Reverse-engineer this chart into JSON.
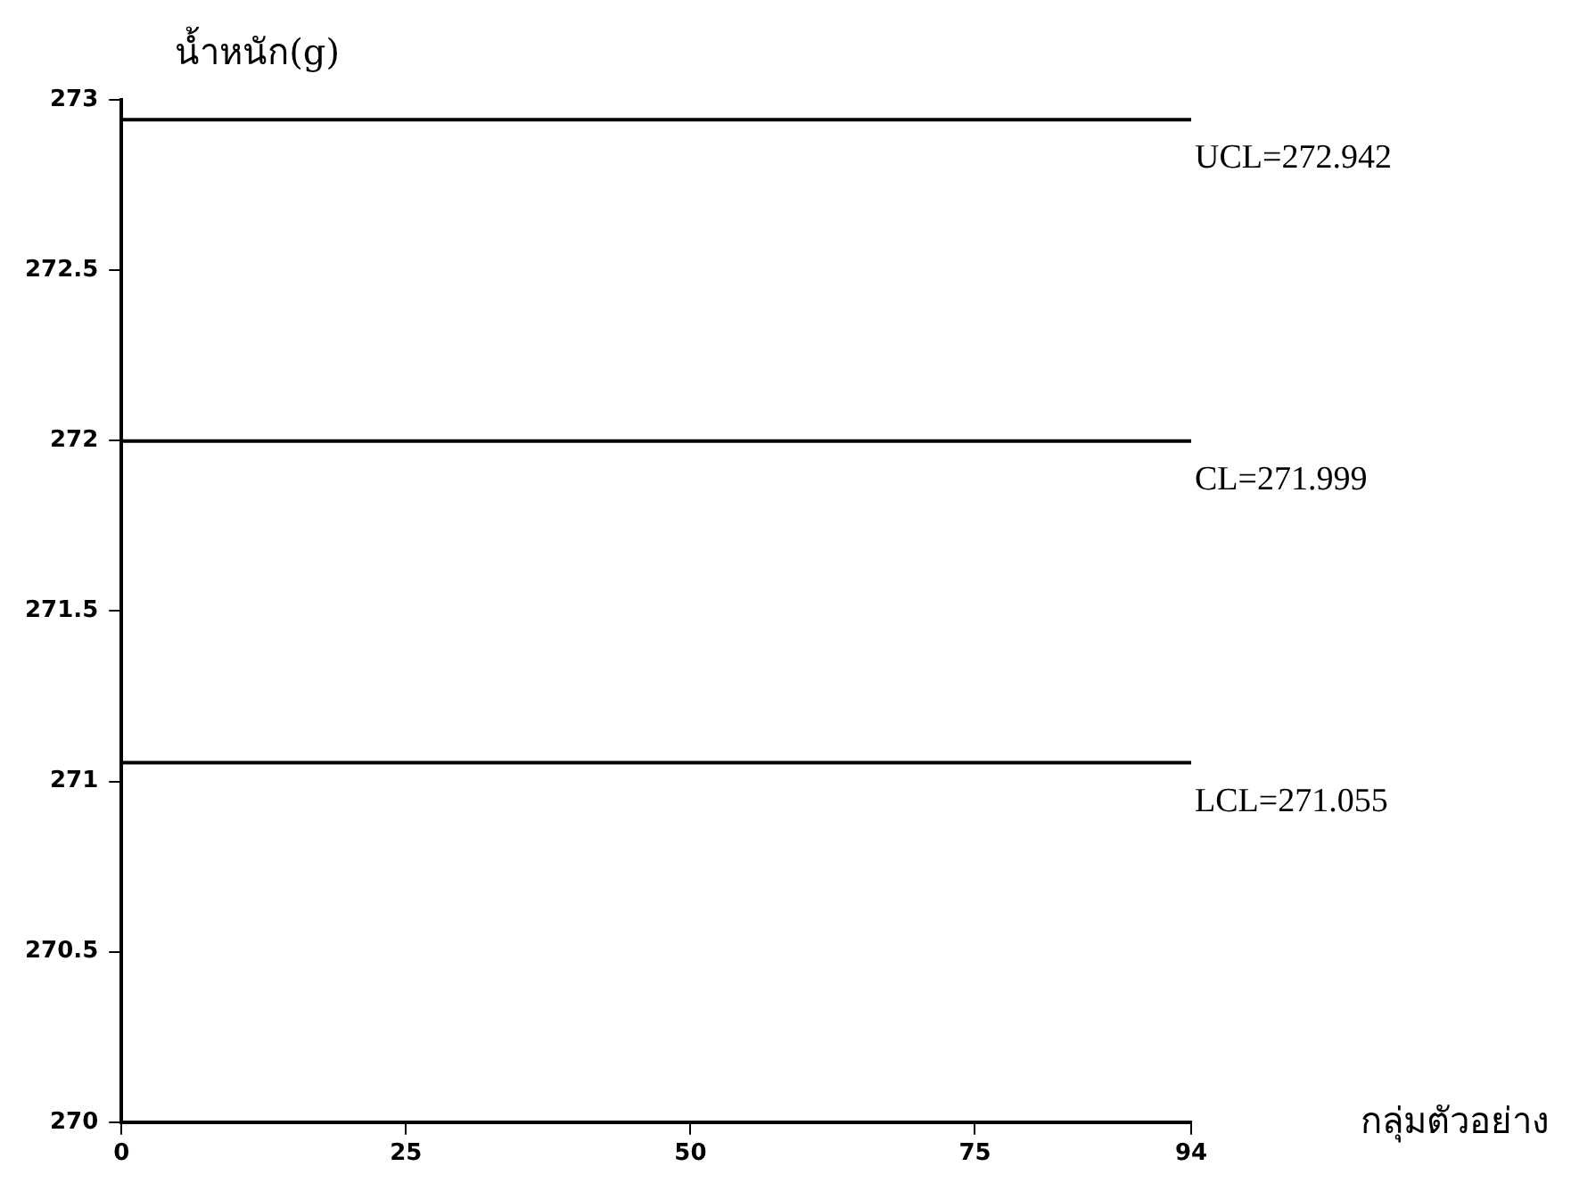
{
  "chart_data": {
    "type": "line",
    "xlabel": "กลุ่มตัวอย่าง",
    "ylabel": "น้ำหนัก(g)",
    "xlim": [
      0,
      94
    ],
    "xticks": [
      0,
      25,
      50,
      75,
      94
    ],
    "ylim": [
      270,
      273
    ],
    "yticks": [
      270,
      270.5,
      271,
      271.5,
      272,
      272.5,
      273
    ],
    "grid": false,
    "legend": false,
    "ref_lines": [
      {
        "axis": "y",
        "value": 272.942,
        "label": "UCL=272.942",
        "color": "#000000"
      },
      {
        "axis": "y",
        "value": 271.999,
        "label": "CL=271.999",
        "color": "#000000"
      },
      {
        "axis": "y",
        "value": 271.055,
        "label": "LCL=271.055",
        "color": "#000000"
      }
    ]
  }
}
